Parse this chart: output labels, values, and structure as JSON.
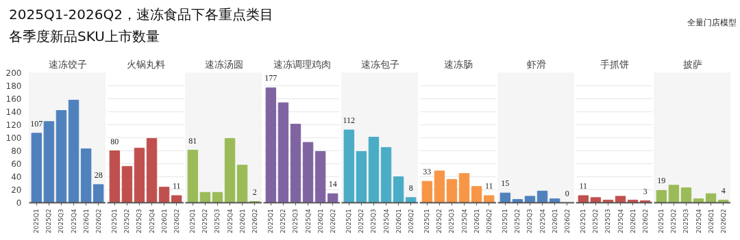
{
  "chart_data": [
    {
      "type": "bar",
      "title": "2025Q1-2026Q2，速冻食品下各重点类目各季度新品SKU上市数量",
      "annotations": [
        "全量门店模型"
      ],
      "subtitle": "速冻饺子",
      "categories": [
        "2025Q1",
        "2025Q2",
        "2025Q3",
        "2025Q4",
        "2026Q1",
        "2026Q2"
      ],
      "values": [
        107,
        125,
        142,
        158,
        83,
        28
      ],
      "value_labels": [
        "107",
        null,
        null,
        null,
        null,
        "28"
      ],
      "color": "#4f81bd",
      "ylim": [
        0,
        200
      ],
      "yticks": [
        0,
        20,
        40,
        60,
        80,
        100,
        120,
        140,
        160,
        180,
        200
      ],
      "grid": "y",
      "bands": [
        {
          "axis": "y",
          "from": 0,
          "to": 200,
          "color": "#f5f5f5"
        }
      ]
    },
    {
      "type": "bar",
      "subtitle": "火锅丸料",
      "categories": [
        "2025Q1",
        "2025Q2",
        "2025Q3",
        "2025Q4",
        "2026Q1",
        "2026Q2"
      ],
      "values": [
        80,
        56,
        84,
        99,
        24,
        11
      ],
      "value_labels": [
        "80",
        null,
        null,
        null,
        null,
        "11"
      ],
      "color": "#c0504d",
      "ylim": [
        0,
        200
      ],
      "yticks": [
        0,
        20,
        40,
        60,
        80,
        100,
        120,
        140,
        160,
        180,
        200
      ],
      "grid": "y",
      "tick_labels": "x"
    },
    {
      "type": "bar",
      "subtitle": "速冻汤圆",
      "categories": [
        "2025Q1",
        "2025Q2",
        "2025Q3",
        "2025Q4",
        "2026Q1",
        "2026Q2"
      ],
      "values": [
        81,
        16,
        16,
        99,
        58,
        2
      ],
      "value_labels": [
        "81",
        null,
        null,
        null,
        null,
        "2"
      ],
      "color": "#9bbb59",
      "ylim": [
        0,
        200
      ],
      "yticks": [
        0,
        20,
        40,
        60,
        80,
        100,
        120,
        140,
        160,
        180,
        200
      ],
      "grid": "y",
      "tick_labels": "x",
      "bands": [
        {
          "axis": "y",
          "from": 0,
          "to": 200,
          "color": "#f5f5f5"
        }
      ]
    },
    {
      "type": "bar",
      "subtitle": "速冻调理鸡肉",
      "categories": [
        "2025Q1",
        "2025Q2",
        "2025Q3",
        "2025Q4",
        "2026Q1",
        "2026Q2"
      ],
      "values": [
        177,
        154,
        121,
        93,
        79,
        14
      ],
      "value_labels": [
        "177",
        null,
        null,
        null,
        null,
        "14"
      ],
      "color": "#8064a2",
      "ylim": [
        0,
        200
      ],
      "yticks": [
        0,
        20,
        40,
        60,
        80,
        100,
        120,
        140,
        160,
        180,
        200
      ],
      "grid": "y",
      "tick_labels": "x"
    },
    {
      "type": "bar",
      "subtitle": "速冻包子",
      "categories": [
        "2025Q1",
        "2025Q2",
        "2025Q3",
        "2025Q4",
        "2026Q1",
        "2026Q2"
      ],
      "values": [
        112,
        79,
        101,
        85,
        40,
        8
      ],
      "value_labels": [
        "112",
        null,
        null,
        null,
        null,
        "8"
      ],
      "color": "#4bacc6",
      "ylim": [
        0,
        200
      ],
      "yticks": [
        0,
        20,
        40,
        60,
        80,
        100,
        120,
        140,
        160,
        180,
        200
      ],
      "grid": "y",
      "tick_labels": "x",
      "bands": [
        {
          "axis": "y",
          "from": 0,
          "to": 200,
          "color": "#f5f5f5"
        }
      ]
    },
    {
      "type": "bar",
      "subtitle": "速冻肠",
      "categories": [
        "2025Q1",
        "2025Q2",
        "2025Q3",
        "2025Q4",
        "2026Q1",
        "2026Q2"
      ],
      "values": [
        33,
        49,
        36,
        45,
        25,
        11
      ],
      "value_labels": [
        "33",
        null,
        null,
        null,
        null,
        "11"
      ],
      "color": "#f79646",
      "ylim": [
        0,
        200
      ],
      "yticks": [
        0,
        20,
        40,
        60,
        80,
        100,
        120,
        140,
        160,
        180,
        200
      ],
      "grid": "y",
      "tick_labels": "x"
    },
    {
      "type": "bar",
      "subtitle": "虾滑",
      "categories": [
        "2025Q1",
        "2025Q2",
        "2025Q3",
        "2025Q4",
        "2026Q1",
        "2026Q2"
      ],
      "values": [
        15,
        5,
        10,
        18,
        6,
        0
      ],
      "value_labels": [
        "15",
        null,
        null,
        null,
        null,
        "0"
      ],
      "color": "#4f81bd",
      "ylim": [
        0,
        200
      ],
      "yticks": [
        0,
        20,
        40,
        60,
        80,
        100,
        120,
        140,
        160,
        180,
        200
      ],
      "grid": "y",
      "tick_labels": "x",
      "bands": [
        {
          "axis": "y",
          "from": 0,
          "to": 200,
          "color": "#f5f5f5"
        }
      ]
    },
    {
      "type": "bar",
      "subtitle": "手抓饼",
      "categories": [
        "2025Q1",
        "2025Q2",
        "2025Q3",
        "2025Q4",
        "2026Q1",
        "2026Q2"
      ],
      "values": [
        11,
        8,
        4,
        10,
        4,
        3
      ],
      "value_labels": [
        "11",
        null,
        null,
        null,
        null,
        "3"
      ],
      "color": "#c0504d",
      "ylim": [
        0,
        200
      ],
      "yticks": [
        0,
        20,
        40,
        60,
        80,
        100,
        120,
        140,
        160,
        180,
        200
      ],
      "grid": "y",
      "tick_labels": "x"
    },
    {
      "type": "bar",
      "subtitle": "披萨",
      "categories": [
        "2025Q1",
        "2025Q2",
        "2025Q3",
        "2025Q4",
        "2026Q1",
        "2026Q2"
      ],
      "values": [
        19,
        27,
        23,
        6,
        14,
        4
      ],
      "value_labels": [
        "19",
        null,
        null,
        null,
        null,
        "4"
      ],
      "color": "#9bbb59",
      "ylim": [
        0,
        200
      ],
      "yticks": [
        0,
        20,
        40,
        60,
        80,
        100,
        120,
        140,
        160,
        180,
        200
      ],
      "grid": "y",
      "tick_labels": "x",
      "bands": [
        {
          "axis": "y",
          "from": 0,
          "to": 200,
          "color": "#f5f5f5"
        }
      ]
    }
  ]
}
